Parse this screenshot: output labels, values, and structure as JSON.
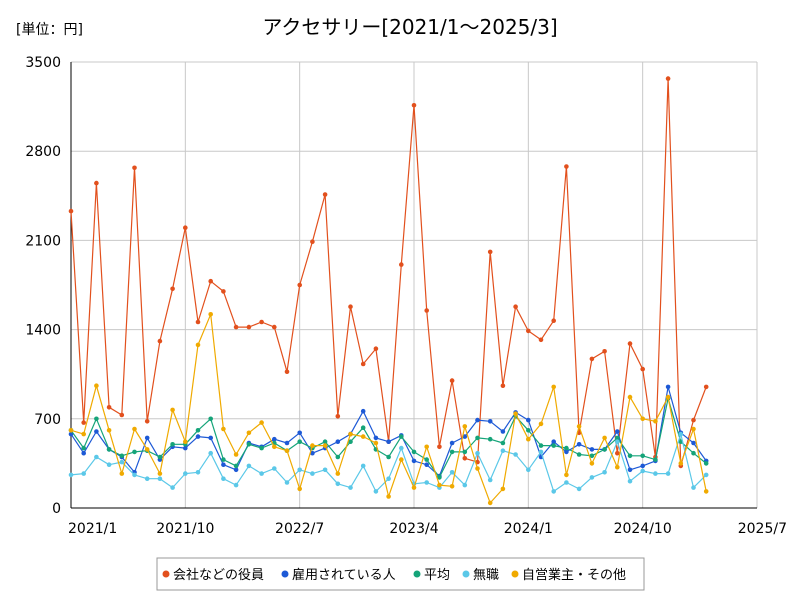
{
  "chart_data": {
    "type": "line",
    "title": "アクセサリー[2021/1～2025/3]",
    "unit_label": "[単位：円]",
    "xlabel": "",
    "ylabel": "",
    "ylim": [
      0,
      3500
    ],
    "y_ticks": [
      0,
      700,
      1400,
      2100,
      2800,
      3500
    ],
    "y_tick_labels": [
      "0",
      "700",
      "1400",
      "2100",
      "2800",
      "3500"
    ],
    "x_tick_labels": [
      "2021/1",
      "2021/10",
      "2022/7",
      "2023/4",
      "2024/1",
      "2024/10",
      "2025/7"
    ],
    "x_tick_month_index": [
      0,
      9,
      18,
      27,
      36,
      45,
      54
    ],
    "xlim_month_index": [
      0,
      54
    ],
    "grid": true,
    "legend_position": "bottom",
    "colors": {
      "grid": "#c8c8c8",
      "axis": "#000000",
      "legend_border": "#999999"
    },
    "series": [
      {
        "name": "会社などの役員",
        "color": "#e2501d",
        "values": [
          2330,
          670,
          2550,
          790,
          730,
          2670,
          680,
          1310,
          1720,
          2200,
          1460,
          1780,
          1700,
          1420,
          1420,
          1460,
          1420,
          1070,
          1750,
          2090,
          2460,
          720,
          1580,
          1130,
          1250,
          520,
          1910,
          3160,
          1550,
          480,
          1000,
          390,
          360,
          2010,
          960,
          1580,
          1390,
          1320,
          1470,
          2680,
          590,
          1170,
          1230,
          430,
          1290,
          1090,
          400,
          3370,
          330,
          690,
          950
        ]
      },
      {
        "name": "雇用されている人",
        "color": "#1d59d6",
        "values": [
          580,
          430,
          600,
          460,
          400,
          280,
          550,
          380,
          480,
          470,
          560,
          550,
          340,
          300,
          510,
          480,
          540,
          510,
          590,
          430,
          470,
          520,
          580,
          760,
          550,
          520,
          570,
          370,
          340,
          250,
          510,
          560,
          690,
          680,
          600,
          750,
          690,
          400,
          520,
          440,
          500,
          460,
          460,
          600,
          300,
          330,
          370,
          950,
          590,
          510,
          370
        ]
      },
      {
        "name": "平均",
        "color": "#15a479",
        "values": [
          610,
          470,
          700,
          460,
          410,
          440,
          450,
          400,
          500,
          500,
          610,
          700,
          380,
          330,
          500,
          470,
          510,
          450,
          520,
          470,
          520,
          400,
          520,
          630,
          460,
          400,
          560,
          440,
          380,
          240,
          440,
          440,
          550,
          540,
          510,
          720,
          610,
          490,
          490,
          470,
          420,
          410,
          460,
          550,
          410,
          410,
          380,
          860,
          520,
          430,
          350
        ]
      },
      {
        "name": "無職",
        "color": "#5bc8e8",
        "values": [
          260,
          270,
          400,
          340,
          360,
          260,
          230,
          230,
          160,
          270,
          280,
          430,
          230,
          180,
          330,
          270,
          310,
          200,
          300,
          270,
          300,
          190,
          160,
          330,
          130,
          230,
          470,
          190,
          200,
          160,
          280,
          180,
          430,
          220,
          450,
          420,
          300,
          440,
          130,
          200,
          150,
          240,
          280,
          520,
          210,
          290,
          270,
          270,
          580,
          160,
          260
        ]
      },
      {
        "name": "自営業主・その他",
        "color": "#f0aa00",
        "values": [
          610,
          580,
          960,
          610,
          270,
          620,
          460,
          270,
          770,
          520,
          1280,
          1520,
          620,
          420,
          590,
          670,
          480,
          450,
          150,
          490,
          490,
          270,
          580,
          560,
          510,
          90,
          380,
          160,
          480,
          180,
          170,
          640,
          310,
          40,
          150,
          740,
          540,
          660,
          950,
          260,
          640,
          350,
          550,
          320,
          870,
          700,
          680,
          870,
          350,
          620,
          130
        ]
      }
    ]
  }
}
